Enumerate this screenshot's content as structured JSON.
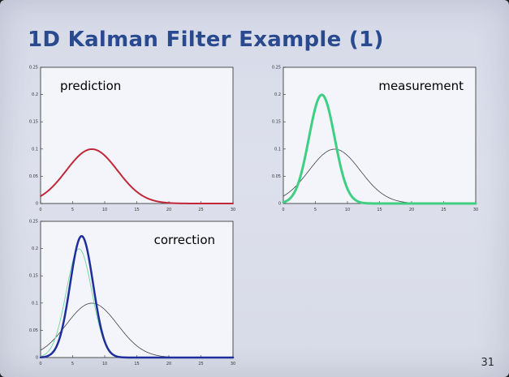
{
  "slide": {
    "title": "1D Kalman Filter Example (1)",
    "page_number": "31"
  },
  "chart_data": [
    {
      "type": "line",
      "label": "prediction",
      "xlim": [
        0,
        30
      ],
      "ylim": [
        0,
        0.25
      ],
      "x_ticks": [
        "0",
        "5",
        "10",
        "15",
        "20",
        "25",
        "30"
      ],
      "y_ticks": [
        "0",
        "0.05",
        "0.1",
        "0.15",
        "0.2",
        "0.25"
      ],
      "series": [
        {
          "mean": 8,
          "sigma": 4,
          "color": "#c0283a",
          "width": 2
        }
      ]
    },
    {
      "type": "line",
      "label": "measurement",
      "xlim": [
        0,
        30
      ],
      "ylim": [
        0,
        0.25
      ],
      "x_ticks": [
        "0",
        "5",
        "10",
        "15",
        "20",
        "25",
        "30"
      ],
      "y_ticks": [
        "0",
        "0.05",
        "0.1",
        "0.15",
        "0.2",
        "0.25"
      ],
      "series": [
        {
          "mean": 8,
          "sigma": 4,
          "color": "#404048",
          "width": 0.8
        },
        {
          "mean": 6,
          "sigma": 2,
          "color": "#3fcf83",
          "width": 3
        }
      ]
    },
    {
      "type": "line",
      "label": "correction",
      "xlim": [
        0,
        30
      ],
      "ylim": [
        0,
        0.25
      ],
      "x_ticks": [
        "0",
        "5",
        "10",
        "15",
        "20",
        "25",
        "30"
      ],
      "y_ticks": [
        "0",
        "0.05",
        "0.1",
        "0.15",
        "0.2",
        "0.25"
      ],
      "series": [
        {
          "mean": 8,
          "sigma": 4,
          "color": "#404048",
          "width": 0.8
        },
        {
          "mean": 6,
          "sigma": 2,
          "color": "#7ad6a4",
          "width": 1
        },
        {
          "mean": 6.4,
          "sigma": 1.79,
          "color": "#1e2e9c",
          "width": 2.5
        }
      ]
    }
  ]
}
